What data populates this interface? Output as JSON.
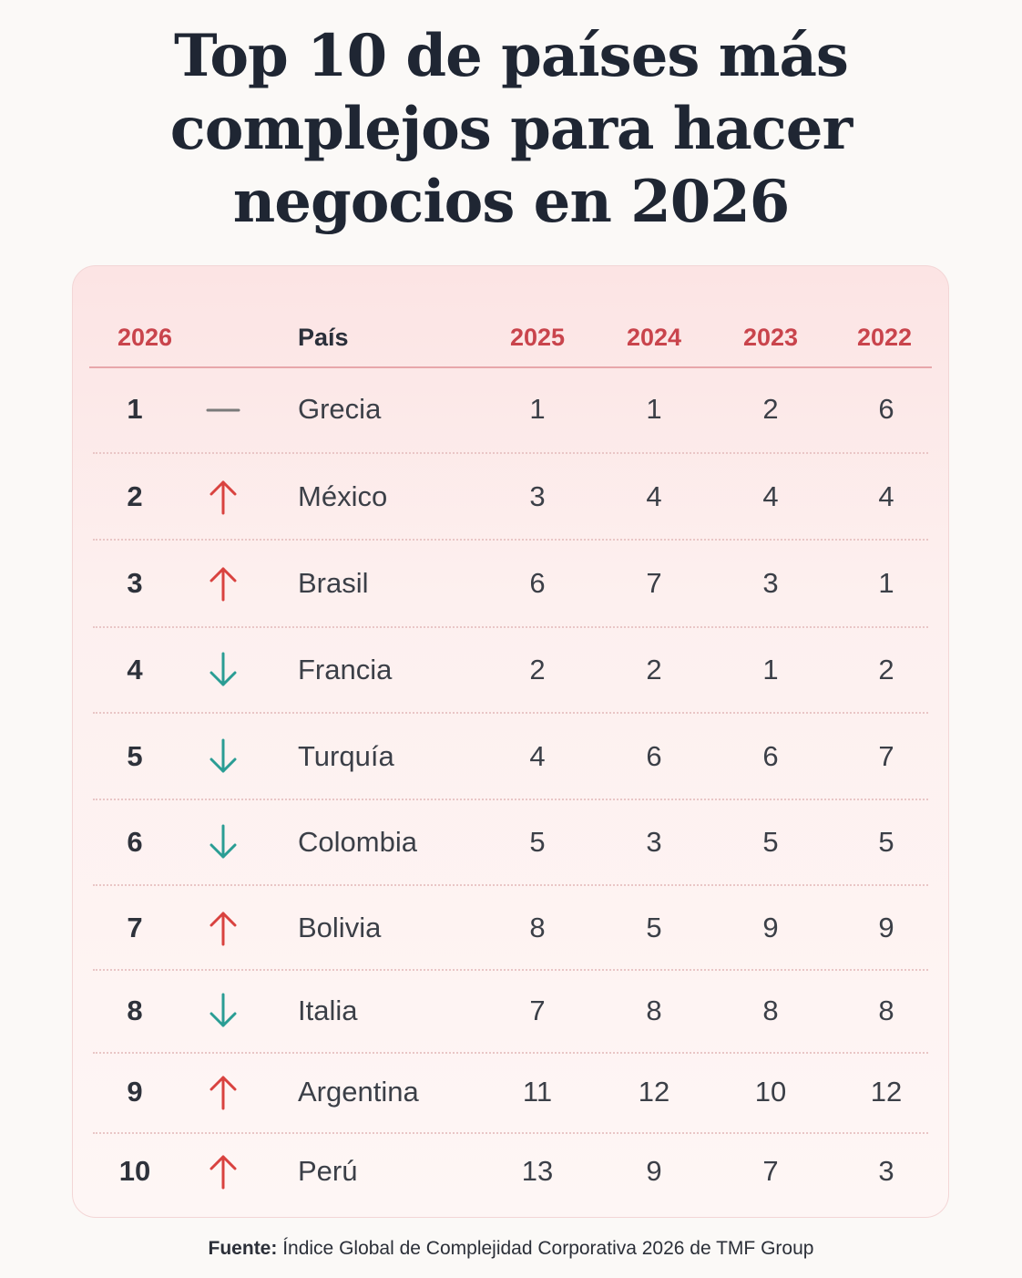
{
  "title_lines": [
    "Top 10 de países más",
    "complejos para hacer",
    "negocios en 2026"
  ],
  "header": {
    "rank": "2026",
    "country": "País",
    "y2025": "2025",
    "y2024": "2024",
    "y2023": "2023",
    "y2022": "2022"
  },
  "rows": [
    {
      "rank": "1",
      "trend": "same",
      "country": "Grecia",
      "y2025": "1",
      "y2024": "1",
      "y2023": "2",
      "y2022": "6"
    },
    {
      "rank": "2",
      "trend": "up",
      "country": "México",
      "y2025": "3",
      "y2024": "4",
      "y2023": "4",
      "y2022": "4"
    },
    {
      "rank": "3",
      "trend": "up",
      "country": "Brasil",
      "y2025": "6",
      "y2024": "7",
      "y2023": "3",
      "y2022": "1"
    },
    {
      "rank": "4",
      "trend": "down",
      "country": "Francia",
      "y2025": "2",
      "y2024": "2",
      "y2023": "1",
      "y2022": "2"
    },
    {
      "rank": "5",
      "trend": "down",
      "country": "Turquía",
      "y2025": "4",
      "y2024": "6",
      "y2023": "6",
      "y2022": "7"
    },
    {
      "rank": "6",
      "trend": "down",
      "country": "Colombia",
      "y2025": "5",
      "y2024": "3",
      "y2023": "5",
      "y2022": "5"
    },
    {
      "rank": "7",
      "trend": "up",
      "country": "Bolivia",
      "y2025": "8",
      "y2024": "5",
      "y2023": "9",
      "y2022": "9"
    },
    {
      "rank": "8",
      "trend": "down",
      "country": "Italia",
      "y2025": "7",
      "y2024": "8",
      "y2023": "8",
      "y2022": "8"
    },
    {
      "rank": "9",
      "trend": "up",
      "country": "Argentina",
      "y2025": "11",
      "y2024": "12",
      "y2023": "10",
      "y2022": "12"
    },
    {
      "rank": "10",
      "trend": "up",
      "country": "Perú",
      "y2025": "13",
      "y2024": "9",
      "y2023": "7",
      "y2022": "3"
    }
  ],
  "trend_icons": {
    "up": "arrow-up-icon",
    "down": "arrow-down-icon",
    "same": "dash-icon"
  },
  "colors": {
    "up": "#d9423f",
    "down": "#2a9d94",
    "same": "#7a7a7a",
    "accent": "#c9444c"
  },
  "footer": {
    "label": "Fuente:",
    "text": " Índice Global de Complejidad Corporativa 2026 de TMF Group"
  }
}
